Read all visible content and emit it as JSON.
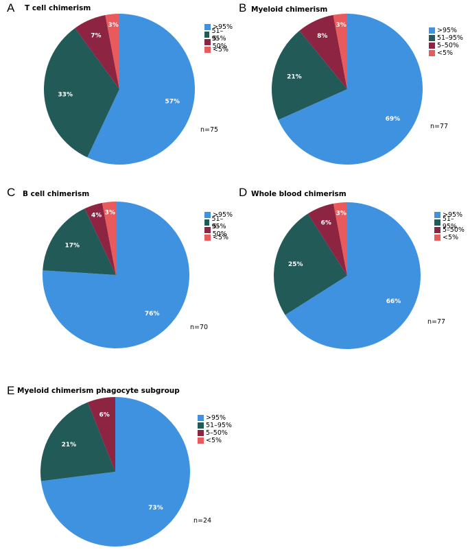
{
  "colors": {
    "gt95": "#3f92e0",
    "51to95": "#225a57",
    "5to50": "#8c2442",
    "lt5": "#e95a5c"
  },
  "legend": [
    ">95%",
    "51–95%",
    "5–50%",
    "<5%"
  ],
  "chart_data": [
    {
      "type": "pie",
      "letter": "A",
      "title": "T cell chimerism",
      "n_label": "n=75",
      "categories": [
        ">95%",
        "51–95%",
        "5–50%",
        "<5%"
      ],
      "values": [
        57,
        33,
        7,
        3
      ],
      "labels": [
        "57%",
        "33%",
        "7%",
        "3%"
      ]
    },
    {
      "type": "pie",
      "letter": "B",
      "title": "Myeloid chimerism",
      "n_label": "n=77",
      "categories": [
        ">95%",
        "51–95%",
        "5–50%",
        "<5%"
      ],
      "values": [
        69,
        21,
        8,
        3
      ],
      "labels": [
        "69%",
        "21%",
        "8%",
        "3%"
      ]
    },
    {
      "type": "pie",
      "letter": "C",
      "title": "B cell chimerism",
      "n_label": "n=70",
      "categories": [
        ">95%",
        "51–95%",
        "5–50%",
        "<5%"
      ],
      "values": [
        76,
        17,
        4,
        3
      ],
      "labels": [
        "76%",
        "17%",
        "4%",
        "3%"
      ]
    },
    {
      "type": "pie",
      "letter": "D",
      "title": "Whole blood chimerism",
      "n_label": "n=77",
      "categories": [
        ">95%",
        "51–95%",
        "5–50%",
        "<5%"
      ],
      "values": [
        66,
        25,
        6,
        3
      ],
      "labels": [
        "66%",
        "25%",
        "6%",
        "3%"
      ]
    },
    {
      "type": "pie",
      "letter": "E",
      "title": "Myeloid chimerism phagocyte subgroup",
      "n_label": "n=24",
      "categories": [
        ">95%",
        "51–95%",
        "5–50%",
        "<5%"
      ],
      "values": [
        73,
        21,
        6,
        0
      ],
      "labels": [
        "73%",
        "21%",
        "6%",
        ""
      ]
    }
  ]
}
